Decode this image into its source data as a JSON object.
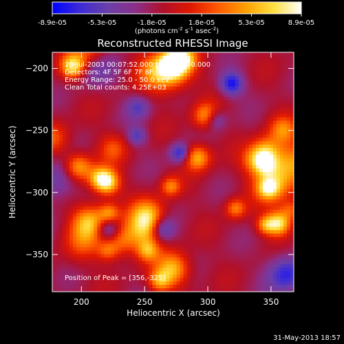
{
  "chart_data": {
    "type": "heatmap",
    "title": "Reconstructed RHESSI Image",
    "xlabel": "Heliocentric X (arcsec)",
    "ylabel": "Heliocentric Y (arcsec)",
    "xlim": [
      177,
      368
    ],
    "ylim": [
      -380,
      -187
    ],
    "x_ticks": [
      200,
      250,
      300,
      350
    ],
    "y_ticks": [
      -200,
      -250,
      -300,
      -350
    ],
    "colorbar": {
      "min": -8.9e-05,
      "max": 8.9e-05,
      "tick_labels": [
        "-8.9e-05",
        "-5.3e-05",
        "-1.8e-05",
        "1.8e-05",
        "5.3e-05",
        "8.9e-05"
      ],
      "unit_label": "(photons cm",
      "unit_exp1": "-2",
      "unit_mid": " s",
      "unit_exp2": "-1",
      "unit_mid2": " asec",
      "unit_exp3": "-2",
      "unit_end": ")",
      "colormap": [
        "#0000ff",
        "#3c2bd6",
        "#6a3fa8",
        "#8a2f8a",
        "#b0102a",
        "#e01800",
        "#ff5a00",
        "#ffa000",
        "#ffe040",
        "#ffffff"
      ]
    },
    "annotations": [
      "20-Jul-2003 00:07:52.000 to 00:12:30.000",
      "Detectors: 4F 5F 6F 7F 8F, Att 0",
      "Energy Range: 25.0 - 50.0 keV",
      "Clean    Total counts: 4.25E+03"
    ],
    "peak_label": "Position of Peak = [356,-325]",
    "peak": [
      356,
      -325
    ],
    "timestamp": "31-May-2013 18:57",
    "grid": false
  }
}
